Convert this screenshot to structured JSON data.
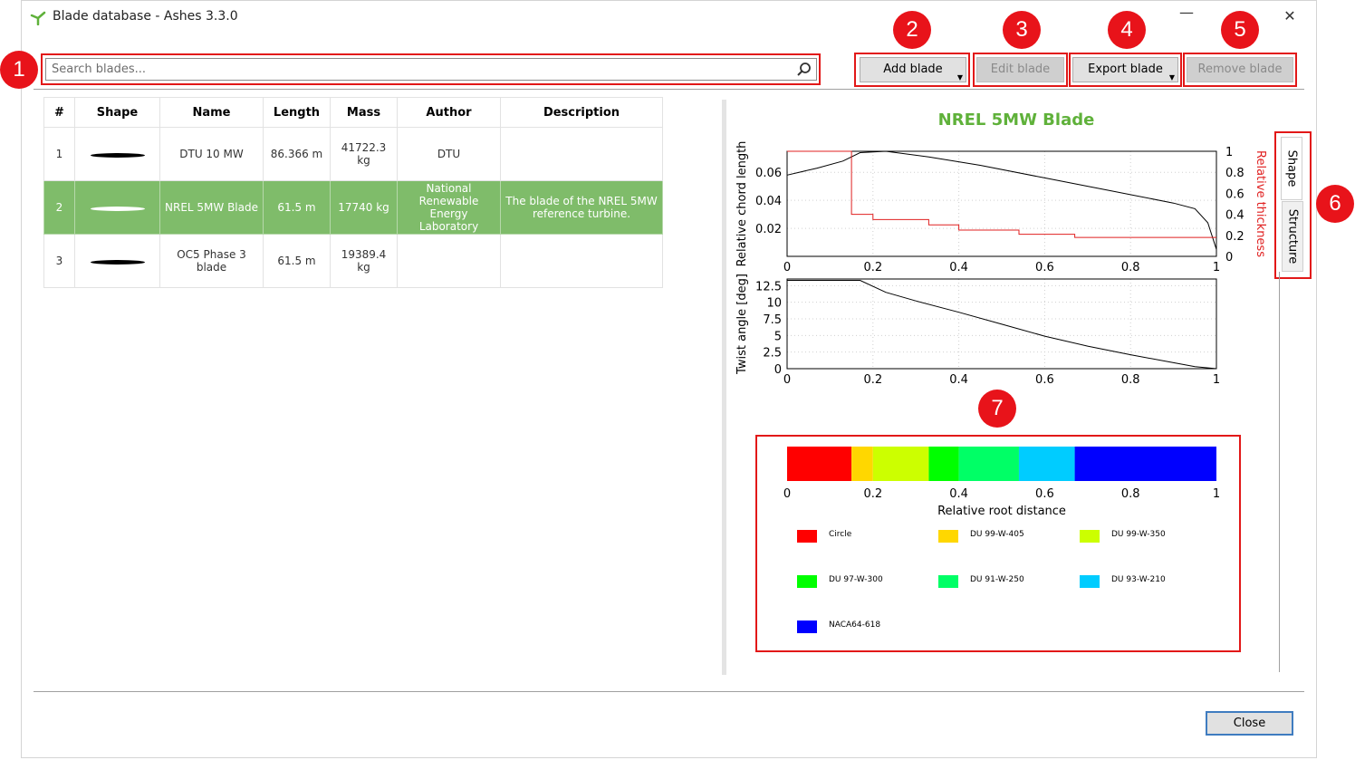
{
  "window": {
    "title": "Blade database - Ashes 3.3.0",
    "minimize": "—",
    "close": "✕"
  },
  "search": {
    "placeholder": "Search blades..."
  },
  "toolbar": {
    "add": "Add blade",
    "edit": "Edit blade",
    "export": "Export blade",
    "remove": "Remove blade"
  },
  "callouts": [
    "1",
    "2",
    "3",
    "4",
    "5",
    "6",
    "7"
  ],
  "table": {
    "headers": [
      "#",
      "Shape",
      "Name",
      "Length",
      "Mass",
      "Author",
      "Description"
    ],
    "rows": [
      {
        "num": "1",
        "name": "DTU 10 MW",
        "length": "86.366 m",
        "mass": "41722.3 kg",
        "author": "DTU",
        "description": ""
      },
      {
        "num": "2",
        "name": "NREL 5MW Blade",
        "length": "61.5 m",
        "mass": "17740 kg",
        "author": "National Renewable Energy Laboratory",
        "description": "The blade of the NREL 5MW reference turbine."
      },
      {
        "num": "3",
        "name": "OC5 Phase 3 blade",
        "length": "61.5 m",
        "mass": "19389.4 kg",
        "author": "",
        "description": ""
      }
    ]
  },
  "chart_title": "NREL 5MW Blade",
  "tabs": {
    "shape": "Shape",
    "structure": "Structure"
  },
  "chart_data": [
    {
      "type": "line",
      "xlim": [
        0,
        1
      ],
      "ylim": [
        0,
        0.075
      ],
      "y2lim": [
        0,
        1
      ],
      "xticks": [
        "0",
        "0.2",
        "0.4",
        "0.6",
        "0.8",
        "1"
      ],
      "yticks": [
        "0.02",
        "0.04",
        "0.06"
      ],
      "y2ticks": [
        "0",
        "0.2",
        "0.4",
        "0.6",
        "0.8",
        "1"
      ],
      "ylabel": "Relative chord length",
      "y2label": "Relative thickness",
      "series": [
        {
          "color": "#000000",
          "axis": "left",
          "x": [
            0,
            0.07,
            0.13,
            0.17,
            0.23,
            0.33,
            0.45,
            0.6,
            0.75,
            0.9,
            0.95,
            0.98,
            1.0
          ],
          "y": [
            0.058,
            0.063,
            0.068,
            0.074,
            0.075,
            0.071,
            0.065,
            0.056,
            0.047,
            0.038,
            0.034,
            0.024,
            0.005
          ]
        },
        {
          "color": "#e02020",
          "axis": "right",
          "steps": true,
          "x": [
            0,
            0.15,
            0.15,
            0.2,
            0.2,
            0.33,
            0.33,
            0.4,
            0.4,
            0.54,
            0.54,
            0.67,
            0.67,
            1.0
          ],
          "y": [
            1,
            1,
            0.4,
            0.4,
            0.35,
            0.35,
            0.3,
            0.3,
            0.25,
            0.25,
            0.21,
            0.21,
            0.18,
            0.18
          ]
        }
      ]
    },
    {
      "type": "line",
      "xlim": [
        0,
        1
      ],
      "ylim": [
        0,
        13.5
      ],
      "xticks": [
        "0",
        "0.2",
        "0.4",
        "0.6",
        "0.8",
        "1"
      ],
      "yticks": [
        "0",
        "2.5",
        "5",
        "7.5",
        "10",
        "12.5"
      ],
      "ylabel": "Twist angle [deg]",
      "series": [
        {
          "color": "#000000",
          "x": [
            0,
            0.17,
            0.23,
            0.3,
            0.4,
            0.5,
            0.6,
            0.7,
            0.8,
            0.9,
            0.95,
            1.0
          ],
          "y": [
            13.3,
            13.3,
            11.5,
            10.2,
            8.5,
            6.7,
            4.9,
            3.4,
            2.1,
            0.9,
            0.3,
            0
          ]
        }
      ]
    }
  ],
  "airfoil_bar": {
    "xticks": [
      "0",
      "0.2",
      "0.4",
      "0.6",
      "0.8",
      "1"
    ],
    "xlabel": "Relative root distance",
    "segments": [
      {
        "name": "Circle",
        "color": "#ff0000",
        "start": 0,
        "end": 0.15
      },
      {
        "name": "DU 99-W-405",
        "color": "#ffd700",
        "start": 0.15,
        "end": 0.2
      },
      {
        "name": "DU 99-W-350",
        "color": "#ccff00",
        "start": 0.2,
        "end": 0.33
      },
      {
        "name": "DU 97-W-300",
        "color": "#00ff00",
        "start": 0.33,
        "end": 0.4
      },
      {
        "name": "DU 91-W-250",
        "color": "#00ff66",
        "start": 0.4,
        "end": 0.54
      },
      {
        "name": "DU 93-W-210",
        "color": "#00ccff",
        "start": 0.54,
        "end": 0.67
      },
      {
        "name": "NACA64-618",
        "color": "#0000ff",
        "start": 0.67,
        "end": 1.0
      }
    ]
  },
  "footer": {
    "close": "Close"
  }
}
